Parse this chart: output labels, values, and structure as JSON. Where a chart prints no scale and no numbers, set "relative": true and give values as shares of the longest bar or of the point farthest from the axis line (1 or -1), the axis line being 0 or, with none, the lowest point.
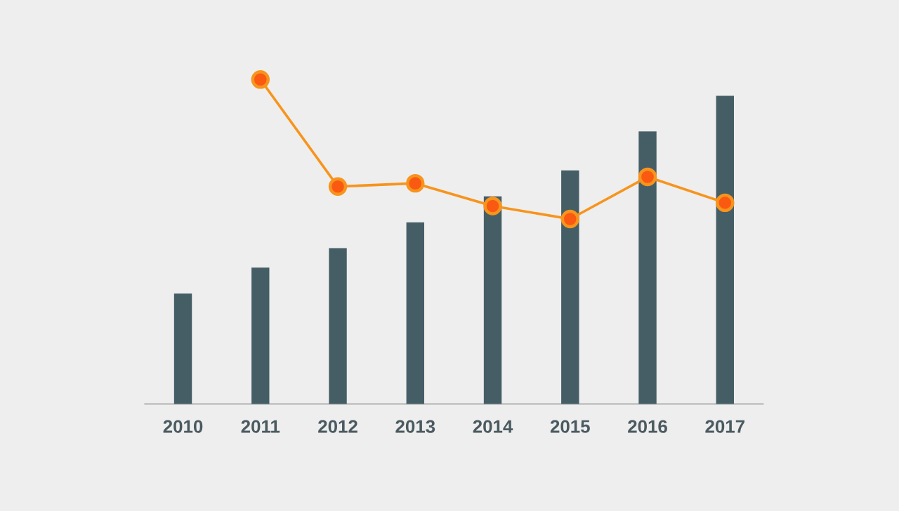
{
  "chart_data": {
    "type": "bar",
    "relative": true,
    "categories": [
      "2010",
      "2011",
      "2012",
      "2013",
      "2014",
      "2015",
      "2016",
      "2017"
    ],
    "series": [
      {
        "color": "#455e66",
        "values": [
          0.34,
          0.42,
          0.48,
          0.56,
          0.64,
          0.72,
          0.84,
          0.95
        ]
      },
      {
        "type": "line",
        "color": "#f7941d",
        "marker": "circle",
        "values": [
          null,
          1,
          0.67,
          0.68,
          0.61,
          0.57,
          0.7,
          0.62
        ]
      }
    ]
  }
}
